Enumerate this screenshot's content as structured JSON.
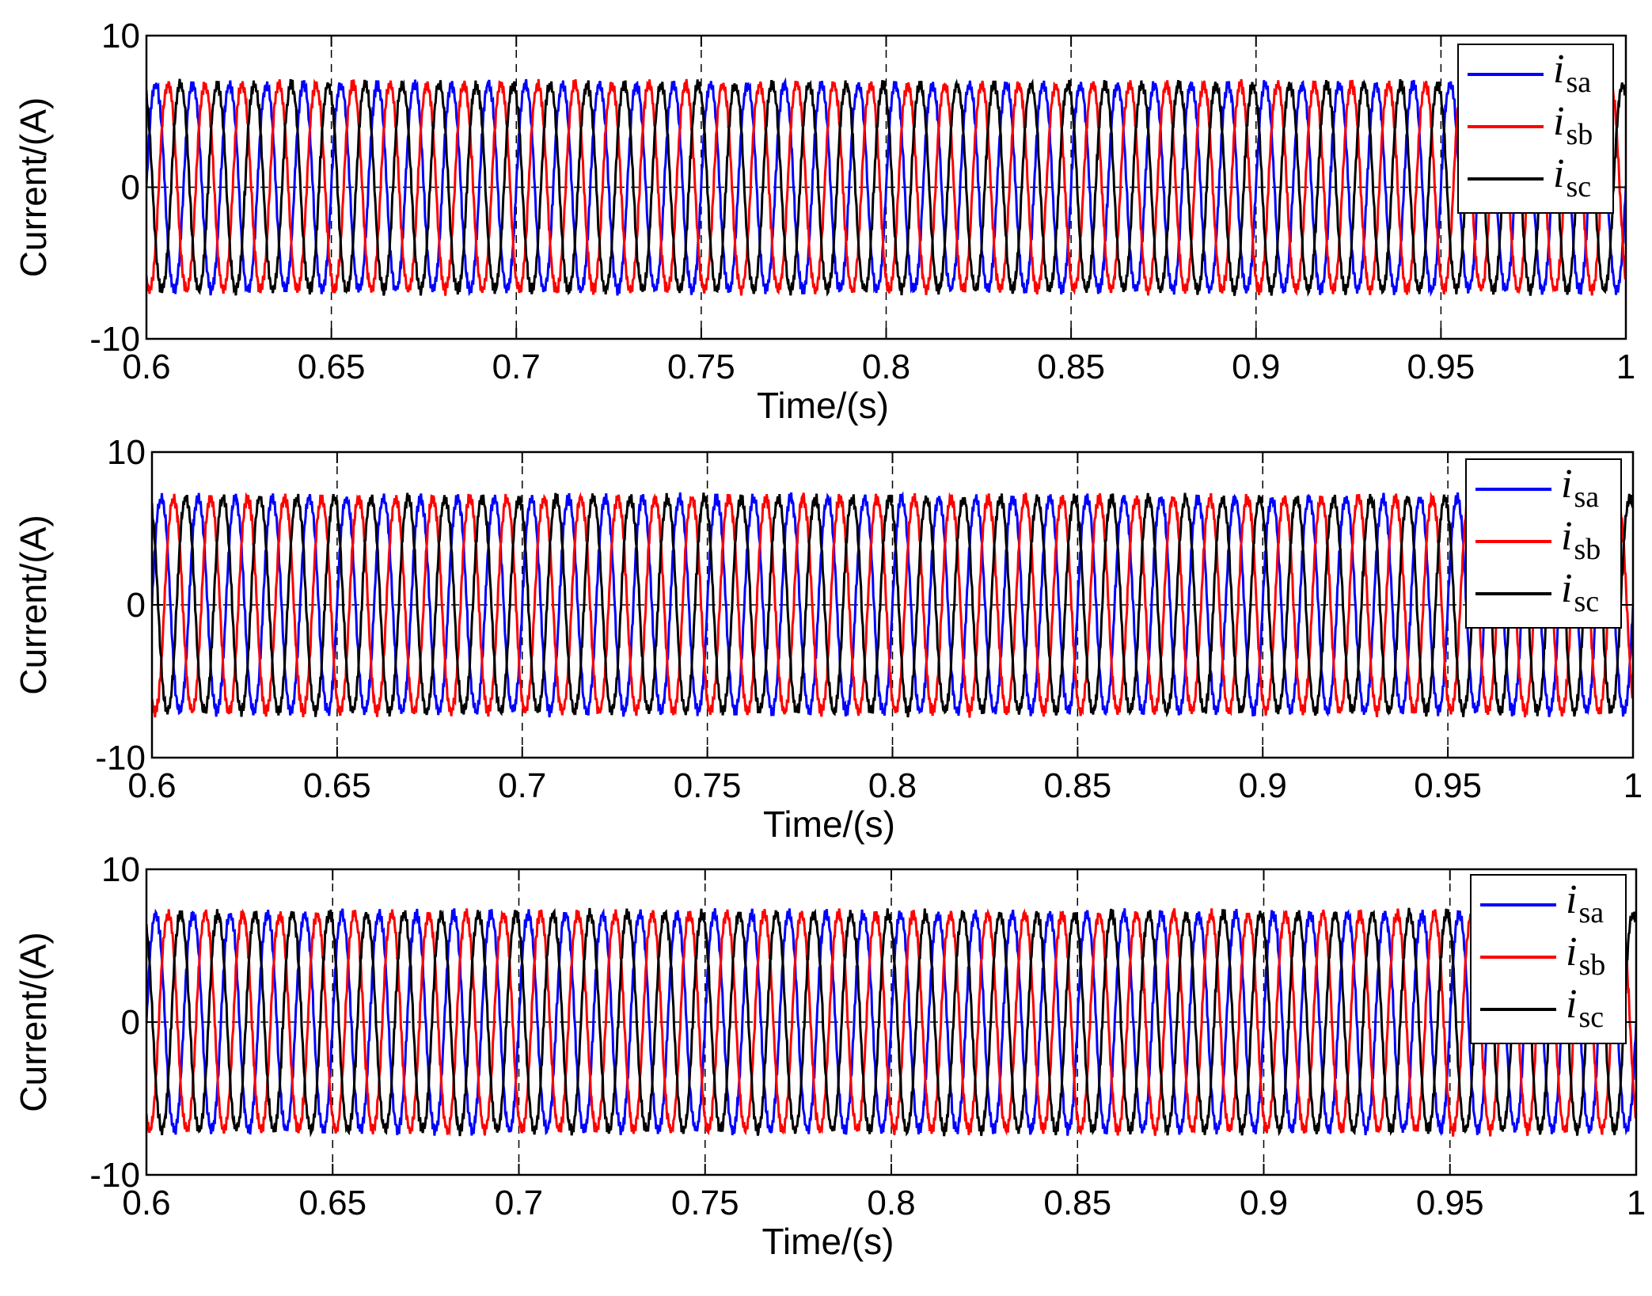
{
  "chart_data": [
    {
      "type": "line",
      "xlabel": "Time/(s)",
      "ylabel": "Current/(A)",
      "xlim": [
        0.6,
        1.0
      ],
      "ylim": [
        -10,
        10
      ],
      "xticks": [
        "0.6",
        "0.65",
        "0.7",
        "0.75",
        "0.8",
        "0.85",
        "0.9",
        "0.95",
        "1"
      ],
      "yticks": [
        "-10",
        "0",
        "10"
      ],
      "grid": true,
      "legend_position": "top-right",
      "frequency_hz": 100,
      "series": [
        {
          "name": "i_sa",
          "symbol": "i",
          "subscript": "sa",
          "color": "#0000ff",
          "amplitude": 7.0,
          "phase_deg": 0
        },
        {
          "name": "i_sb",
          "symbol": "i",
          "subscript": "sb",
          "color": "#ff0000",
          "amplitude": 7.0,
          "phase_deg": -120
        },
        {
          "name": "i_sc",
          "symbol": "i",
          "subscript": "sc",
          "color": "#000000",
          "amplitude": 7.0,
          "phase_deg": 120
        }
      ]
    },
    {
      "type": "line",
      "xlabel": "Time/(s)",
      "ylabel": "Current/(A)",
      "xlim": [
        0.6,
        1.0
      ],
      "ylim": [
        -10,
        10
      ],
      "xticks": [
        "0.6",
        "0.65",
        "0.7",
        "0.75",
        "0.8",
        "0.85",
        "0.9",
        "0.95",
        "1"
      ],
      "yticks": [
        "-10",
        "0",
        "10"
      ],
      "grid": true,
      "legend_position": "top-right",
      "frequency_hz": 100,
      "series": [
        {
          "name": "i_sa",
          "symbol": "i",
          "subscript": "sa",
          "color": "#0000ff",
          "amplitude": 7.2,
          "phase_deg": 0
        },
        {
          "name": "i_sb",
          "symbol": "i",
          "subscript": "sb",
          "color": "#ff0000",
          "amplitude": 7.2,
          "phase_deg": -120
        },
        {
          "name": "i_sc",
          "symbol": "i",
          "subscript": "sc",
          "color": "#000000",
          "amplitude": 7.2,
          "phase_deg": 120
        }
      ]
    },
    {
      "type": "line",
      "xlabel": "Time/(s)",
      "ylabel": "Current/(A)",
      "xlim": [
        0.6,
        1.0
      ],
      "ylim": [
        -10,
        10
      ],
      "xticks": [
        "0.6",
        "0.65",
        "0.7",
        "0.75",
        "0.8",
        "0.85",
        "0.9",
        "0.95",
        "1"
      ],
      "yticks": [
        "-10",
        "0",
        "10"
      ],
      "grid": true,
      "legend_position": "top-right",
      "frequency_hz": 100,
      "series": [
        {
          "name": "i_sa",
          "symbol": "i",
          "subscript": "sa",
          "color": "#0000ff",
          "amplitude": 7.3,
          "phase_deg": 0
        },
        {
          "name": "i_sb",
          "symbol": "i",
          "subscript": "sb",
          "color": "#ff0000",
          "amplitude": 7.3,
          "phase_deg": -120
        },
        {
          "name": "i_sc",
          "symbol": "i",
          "subscript": "sc",
          "color": "#000000",
          "amplitude": 7.3,
          "phase_deg": 120
        }
      ]
    }
  ]
}
